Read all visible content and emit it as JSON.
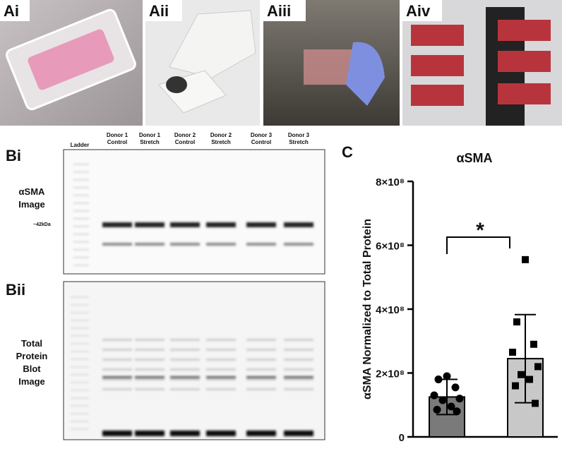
{
  "panel_labels": [
    "Ai",
    "Aii",
    "Aiii",
    "Aiv",
    "Bi",
    "Bii",
    "C"
  ],
  "lanes": [
    [
      "Ladder"
    ],
    [
      "Donor 1",
      "Control"
    ],
    [
      "Donor 1",
      "Stretch"
    ],
    [
      "Donor 2",
      "Control"
    ],
    [
      "Donor 2",
      "Stretch"
    ],
    [
      "Donor 3",
      "Control"
    ],
    [
      "Donor 3",
      "Stretch"
    ]
  ],
  "blot_labels": {
    "asma": [
      "αSMA",
      "Image"
    ],
    "marker": "~42kDa",
    "total": [
      "Total",
      "Protein",
      "Blot",
      "Image"
    ]
  },
  "chart_data": {
    "type": "bar",
    "title": "αSMA",
    "ylabel": "αSMA Normalized to Total Protein",
    "categories": [
      null,
      null
    ],
    "values": [
      125000000,
      245000000
    ],
    "errors": [
      55000000,
      138000000
    ],
    "colors": [
      "#7a7a7a",
      "#c8c8c8"
    ],
    "points": [
      [
        190000000,
        180000000,
        155000000,
        130000000,
        120000000,
        115000000,
        95000000,
        85000000,
        80000000
      ],
      [
        555000000,
        360000000,
        290000000,
        265000000,
        220000000,
        195000000,
        180000000,
        160000000,
        105000000
      ]
    ],
    "annotation": "*",
    "ylim": [
      0,
      800000000
    ],
    "yticks": [
      0,
      {
        "value": 200000000,
        "label": "2×10⁸"
      },
      {
        "value": 400000000,
        "label": "4×10⁸"
      },
      {
        "value": 600000000,
        "label": "6×10⁸"
      },
      {
        "value": 800000000,
        "label": "8×10⁸"
      }
    ]
  }
}
